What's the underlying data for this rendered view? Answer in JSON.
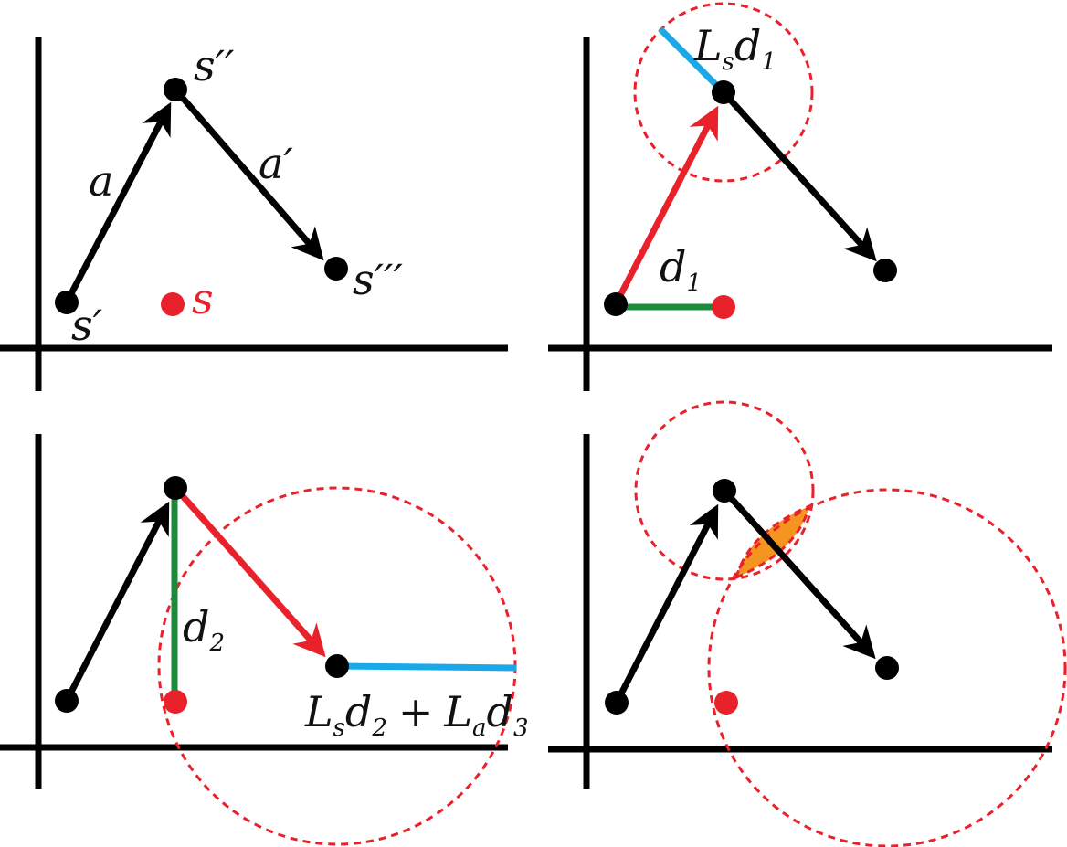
{
  "panels": {
    "p1": {
      "labels": {
        "s_prime": "s′",
        "s_double": "s′′",
        "s_triple": "s′′′",
        "s": "s",
        "a": "a",
        "a_prime": "a′"
      }
    },
    "p2": {
      "labels": {
        "ls_d1_L": "L",
        "ls_d1_s": "s",
        "ls_d1_d": "d",
        "ls_d1_1": "1",
        "d1_d": "d",
        "d1_1": "1"
      }
    },
    "p3": {
      "labels": {
        "d2_d": "d",
        "d2_2": "2",
        "expr_L1": "L",
        "expr_s": "s",
        "expr_d1": "d",
        "expr_2": "2",
        "expr_plus": "+",
        "expr_L2": "L",
        "expr_a": "a",
        "expr_d2": "d",
        "expr_3": "3"
      }
    }
  },
  "colors": {
    "black": "#000000",
    "red": "#e8212b",
    "green": "#1b8a3a",
    "blue": "#1aa8e8",
    "orange": "#f5951f"
  }
}
